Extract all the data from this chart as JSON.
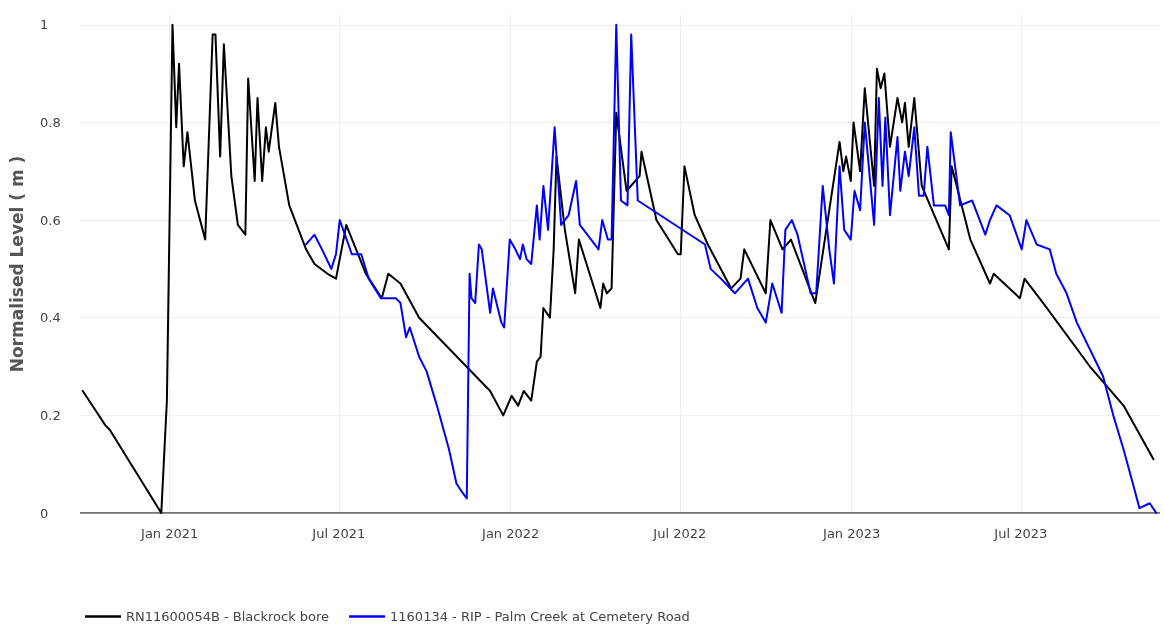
{
  "chart_data": {
    "type": "line",
    "ylabel": "Normalised Level ( m )",
    "xlim": [
      "2020-09-27",
      "2023-11-27"
    ],
    "xticks": [
      {
        "value": "2021-01-01",
        "label": "Jan 2021"
      },
      {
        "value": "2021-07-01",
        "label": "Jul 2021"
      },
      {
        "value": "2022-01-01",
        "label": "Jan 2022"
      },
      {
        "value": "2022-07-01",
        "label": "Jul 2022"
      },
      {
        "value": "2023-01-01",
        "label": "Jan 2023"
      },
      {
        "value": "2023-07-01",
        "label": "Jul 2023"
      }
    ],
    "ylim": [
      0,
      1.02
    ],
    "yticks": [
      0,
      0.2,
      0.4,
      0.6,
      0.8,
      1
    ],
    "grid": true,
    "legend": "bottom left",
    "marker": "none",
    "line_style": "solid",
    "series": [
      {
        "name": "RN11600054B - Blackrock bore",
        "color": "#000000",
        "x": [
          "2020-09-30",
          "2020-10-24",
          "2020-10-29",
          "2020-12-23",
          "2020-12-29",
          "2021-01-04",
          "2021-01-08",
          "2021-01-11",
          "2021-01-16",
          "2021-01-20",
          "2021-01-28",
          "2021-02-08",
          "2021-02-16",
          "2021-02-19",
          "2021-02-24",
          "2021-02-28",
          "2021-03-08",
          "2021-03-15",
          "2021-03-23",
          "2021-03-26",
          "2021-04-02",
          "2021-04-05",
          "2021-04-10",
          "2021-04-14",
          "2021-04-17",
          "2021-04-24",
          "2021-04-28",
          "2021-05-09",
          "2021-05-27",
          "2021-06-05",
          "2021-06-19",
          "2021-06-28",
          "2021-07-09",
          "2021-07-30",
          "2021-08-16",
          "2021-08-23",
          "2021-09-05",
          "2021-09-25",
          "2021-12-10",
          "2021-12-24",
          "2022-01-02",
          "2022-01-09",
          "2022-01-15",
          "2022-01-23",
          "2022-01-29",
          "2022-02-02",
          "2022-02-05",
          "2022-02-12",
          "2022-02-16",
          "2022-02-19",
          "2022-02-28",
          "2022-03-11",
          "2022-03-15",
          "2022-04-07",
          "2022-04-10",
          "2022-04-14",
          "2022-04-19",
          "2022-04-24",
          "2022-05-05",
          "2022-05-19",
          "2022-05-21",
          "2022-06-06",
          "2022-06-29",
          "2022-07-02",
          "2022-07-06",
          "2022-07-17",
          "2022-07-31",
          "2022-08-25",
          "2022-09-04",
          "2022-09-08",
          "2022-10-01",
          "2022-10-06",
          "2022-10-19",
          "2022-10-28",
          "2022-11-23",
          "2022-12-19",
          "2022-12-23",
          "2022-12-26",
          "2022-12-31",
          "2023-01-03",
          "2023-01-10",
          "2023-01-15",
          "2023-01-25",
          "2023-01-28",
          "2023-02-01",
          "2023-02-05",
          "2023-02-11",
          "2023-02-19",
          "2023-02-24",
          "2023-02-27",
          "2023-03-03",
          "2023-03-09",
          "2023-03-17",
          "2023-04-15",
          "2023-04-18",
          "2023-05-08",
          "2023-05-29",
          "2023-06-02",
          "2023-06-30",
          "2023-07-05",
          "2023-07-25",
          "2023-09-13",
          "2023-10-19",
          "2023-11-20"
        ],
        "values": [
          0.25,
          0.18,
          0.17,
          0.0,
          0.23,
          1.0,
          0.79,
          0.92,
          0.71,
          0.78,
          0.64,
          0.56,
          0.98,
          0.98,
          0.73,
          0.96,
          0.69,
          0.59,
          0.57,
          0.89,
          0.68,
          0.85,
          0.68,
          0.79,
          0.74,
          0.84,
          0.75,
          0.63,
          0.54,
          0.51,
          0.49,
          0.48,
          0.59,
          0.49,
          0.44,
          0.49,
          0.47,
          0.4,
          0.25,
          0.2,
          0.24,
          0.22,
          0.25,
          0.23,
          0.31,
          0.32,
          0.42,
          0.4,
          0.54,
          0.73,
          0.58,
          0.45,
          0.56,
          0.42,
          0.47,
          0.45,
          0.46,
          0.82,
          0.66,
          0.69,
          0.74,
          0.6,
          0.53,
          0.53,
          0.71,
          0.61,
          0.55,
          0.46,
          0.48,
          0.54,
          0.45,
          0.6,
          0.54,
          0.56,
          0.43,
          0.76,
          0.7,
          0.73,
          0.68,
          0.8,
          0.7,
          0.87,
          0.67,
          0.91,
          0.87,
          0.9,
          0.75,
          0.85,
          0.8,
          0.84,
          0.75,
          0.85,
          0.67,
          0.54,
          0.71,
          0.56,
          0.47,
          0.49,
          0.44,
          0.48,
          0.43,
          0.3,
          0.22,
          0.11
        ]
      },
      {
        "name": "1160134 - RIP - Palm Creek at Cemetery Road",
        "color": "#0000ff",
        "x": [
          "2021-05-27",
          "2021-06-05",
          "2021-06-13",
          "2021-06-23",
          "2021-06-28",
          "2021-07-02",
          "2021-07-15",
          "2021-07-25",
          "2021-08-02",
          "2021-08-15",
          "2021-08-31",
          "2021-09-05",
          "2021-09-11",
          "2021-09-15",
          "2021-09-25",
          "2021-10-03",
          "2021-10-14",
          "2021-10-27",
          "2021-11-04",
          "2021-11-11",
          "2021-11-15",
          "2021-11-18",
          "2021-11-20",
          "2021-11-24",
          "2021-11-28",
          "2021-12-01",
          "2021-12-10",
          "2021-12-13",
          "2021-12-22",
          "2021-12-25",
          "2021-12-31",
          "2022-01-06",
          "2022-01-11",
          "2022-01-14",
          "2022-01-18",
          "2022-01-23",
          "2022-01-29",
          "2022-02-01",
          "2022-02-05",
          "2022-02-10",
          "2022-02-17",
          "2022-02-24",
          "2022-03-04",
          "2022-03-12",
          "2022-03-16",
          "2022-04-01",
          "2022-04-05",
          "2022-04-09",
          "2022-04-15",
          "2022-04-19",
          "2022-04-24",
          "2022-04-29",
          "2022-05-06",
          "2022-05-10",
          "2022-05-17",
          "2022-07-28",
          "2022-08-03",
          "2022-08-14",
          "2022-08-29",
          "2022-09-12",
          "2022-09-22",
          "2022-10-01",
          "2022-10-08",
          "2022-10-18",
          "2022-10-22",
          "2022-10-29",
          "2022-11-04",
          "2022-11-18",
          "2022-11-24",
          "2022-12-01",
          "2022-12-08",
          "2022-12-13",
          "2022-12-19",
          "2022-12-24",
          "2022-12-31",
          "2023-01-04",
          "2023-01-10",
          "2023-01-15",
          "2023-01-25",
          "2023-01-30",
          "2023-02-03",
          "2023-02-06",
          "2023-02-11",
          "2023-02-19",
          "2023-02-22",
          "2023-02-27",
          "2023-03-03",
          "2023-03-09",
          "2023-03-14",
          "2023-03-19",
          "2023-03-23",
          "2023-03-30",
          "2023-04-11",
          "2023-04-15",
          "2023-04-17",
          "2023-04-27",
          "2023-05-10",
          "2023-05-24",
          "2023-05-29",
          "2023-06-05",
          "2023-06-19",
          "2023-07-02",
          "2023-07-07",
          "2023-07-18",
          "2023-08-01",
          "2023-08-08",
          "2023-08-19",
          "2023-08-30",
          "2023-09-27",
          "2023-10-08",
          "2023-10-19",
          "2023-10-29",
          "2023-11-05",
          "2023-11-16",
          "2023-11-23"
        ],
        "values": [
          0.55,
          0.57,
          0.54,
          0.5,
          0.53,
          0.6,
          0.53,
          0.53,
          0.48,
          0.44,
          0.44,
          0.43,
          0.36,
          0.38,
          0.32,
          0.29,
          0.22,
          0.13,
          0.06,
          0.04,
          0.03,
          0.49,
          0.44,
          0.43,
          0.55,
          0.54,
          0.41,
          0.46,
          0.39,
          0.38,
          0.56,
          0.54,
          0.52,
          0.55,
          0.52,
          0.51,
          0.63,
          0.56,
          0.67,
          0.58,
          0.79,
          0.59,
          0.61,
          0.68,
          0.59,
          0.55,
          0.54,
          0.6,
          0.56,
          0.56,
          1.0,
          0.64,
          0.63,
          0.98,
          0.64,
          0.55,
          0.5,
          0.48,
          0.45,
          0.48,
          0.42,
          0.39,
          0.47,
          0.41,
          0.58,
          0.6,
          0.57,
          0.45,
          0.45,
          0.67,
          0.54,
          0.47,
          0.71,
          0.58,
          0.56,
          0.66,
          0.62,
          0.8,
          0.59,
          0.85,
          0.67,
          0.81,
          0.61,
          0.77,
          0.66,
          0.74,
          0.69,
          0.79,
          0.65,
          0.65,
          0.75,
          0.63,
          0.63,
          0.61,
          0.78,
          0.63,
          0.64,
          0.57,
          0.6,
          0.63,
          0.61,
          0.54,
          0.6,
          0.55,
          0.54,
          0.49,
          0.45,
          0.39,
          0.28,
          0.2,
          0.13,
          0.06,
          0.01,
          0.02,
          0.0
        ]
      }
    ]
  }
}
